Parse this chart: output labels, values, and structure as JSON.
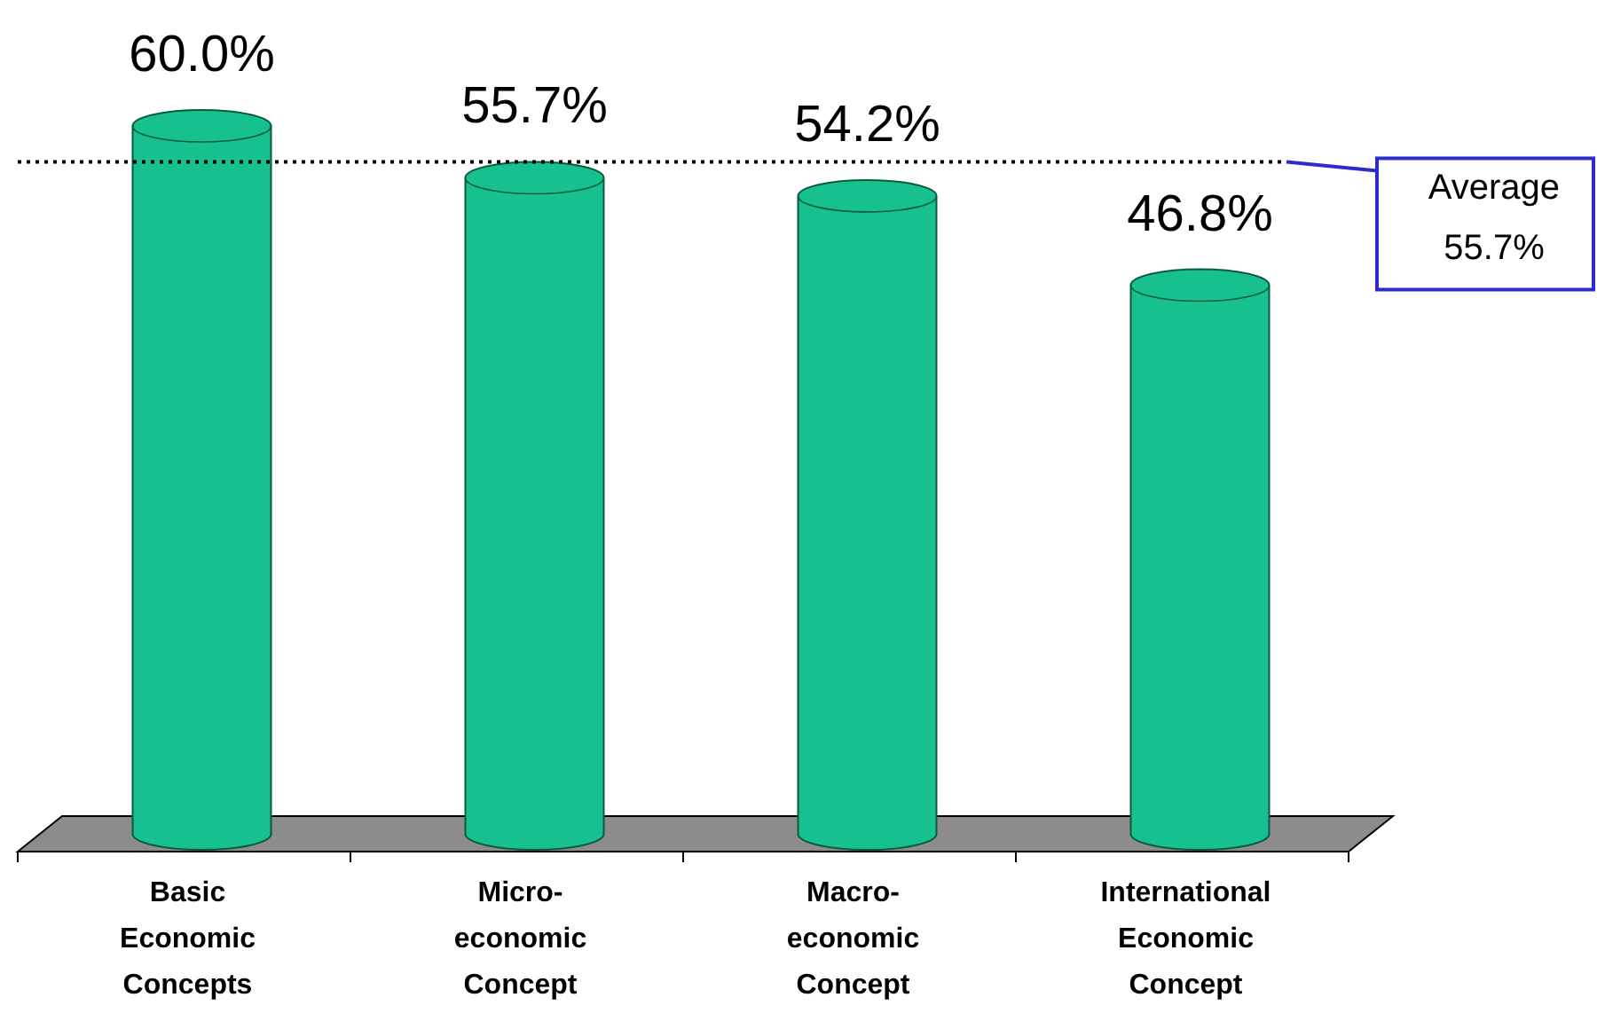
{
  "chart_data": {
    "type": "bar",
    "categories": [
      "Basic Economic Concepts",
      "Micro-economic Concept",
      "Macro-economic Concept",
      "International Economic Concept"
    ],
    "values": [
      60.0,
      55.7,
      54.2,
      46.8
    ],
    "value_labels": [
      "60.0%",
      "55.7%",
      "54.2%",
      "46.8%"
    ],
    "color": "#17c18f",
    "ref_lines": [
      {
        "axis": "y",
        "value": 55.7,
        "label": "Average 55.7%",
        "color": "#000000",
        "line_style": "dotted"
      }
    ]
  }
}
